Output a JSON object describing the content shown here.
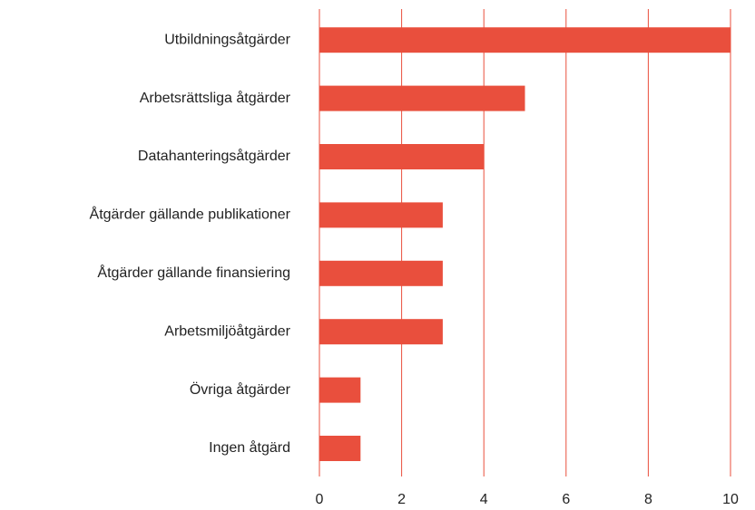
{
  "chart_data": {
    "type": "bar",
    "orientation": "horizontal",
    "categories": [
      "Utbildningsåtgärder",
      "Arbetsrättsliga åtgärder",
      "Datahanteringsåtgärder",
      "Åtgärder gällande publikationer",
      "Åtgärder gällande finansiering",
      "Arbetsmiljöåtgärder",
      "Övriga åtgärder",
      "Ingen åtgärd"
    ],
    "values": [
      10,
      5,
      4,
      3,
      3,
      3,
      1,
      1
    ],
    "color": "#e94f3d",
    "grid_color": "#e94f3d",
    "xlim": [
      0,
      10
    ],
    "xticks": [
      0,
      2,
      4,
      6,
      8,
      10
    ],
    "grid": true
  }
}
